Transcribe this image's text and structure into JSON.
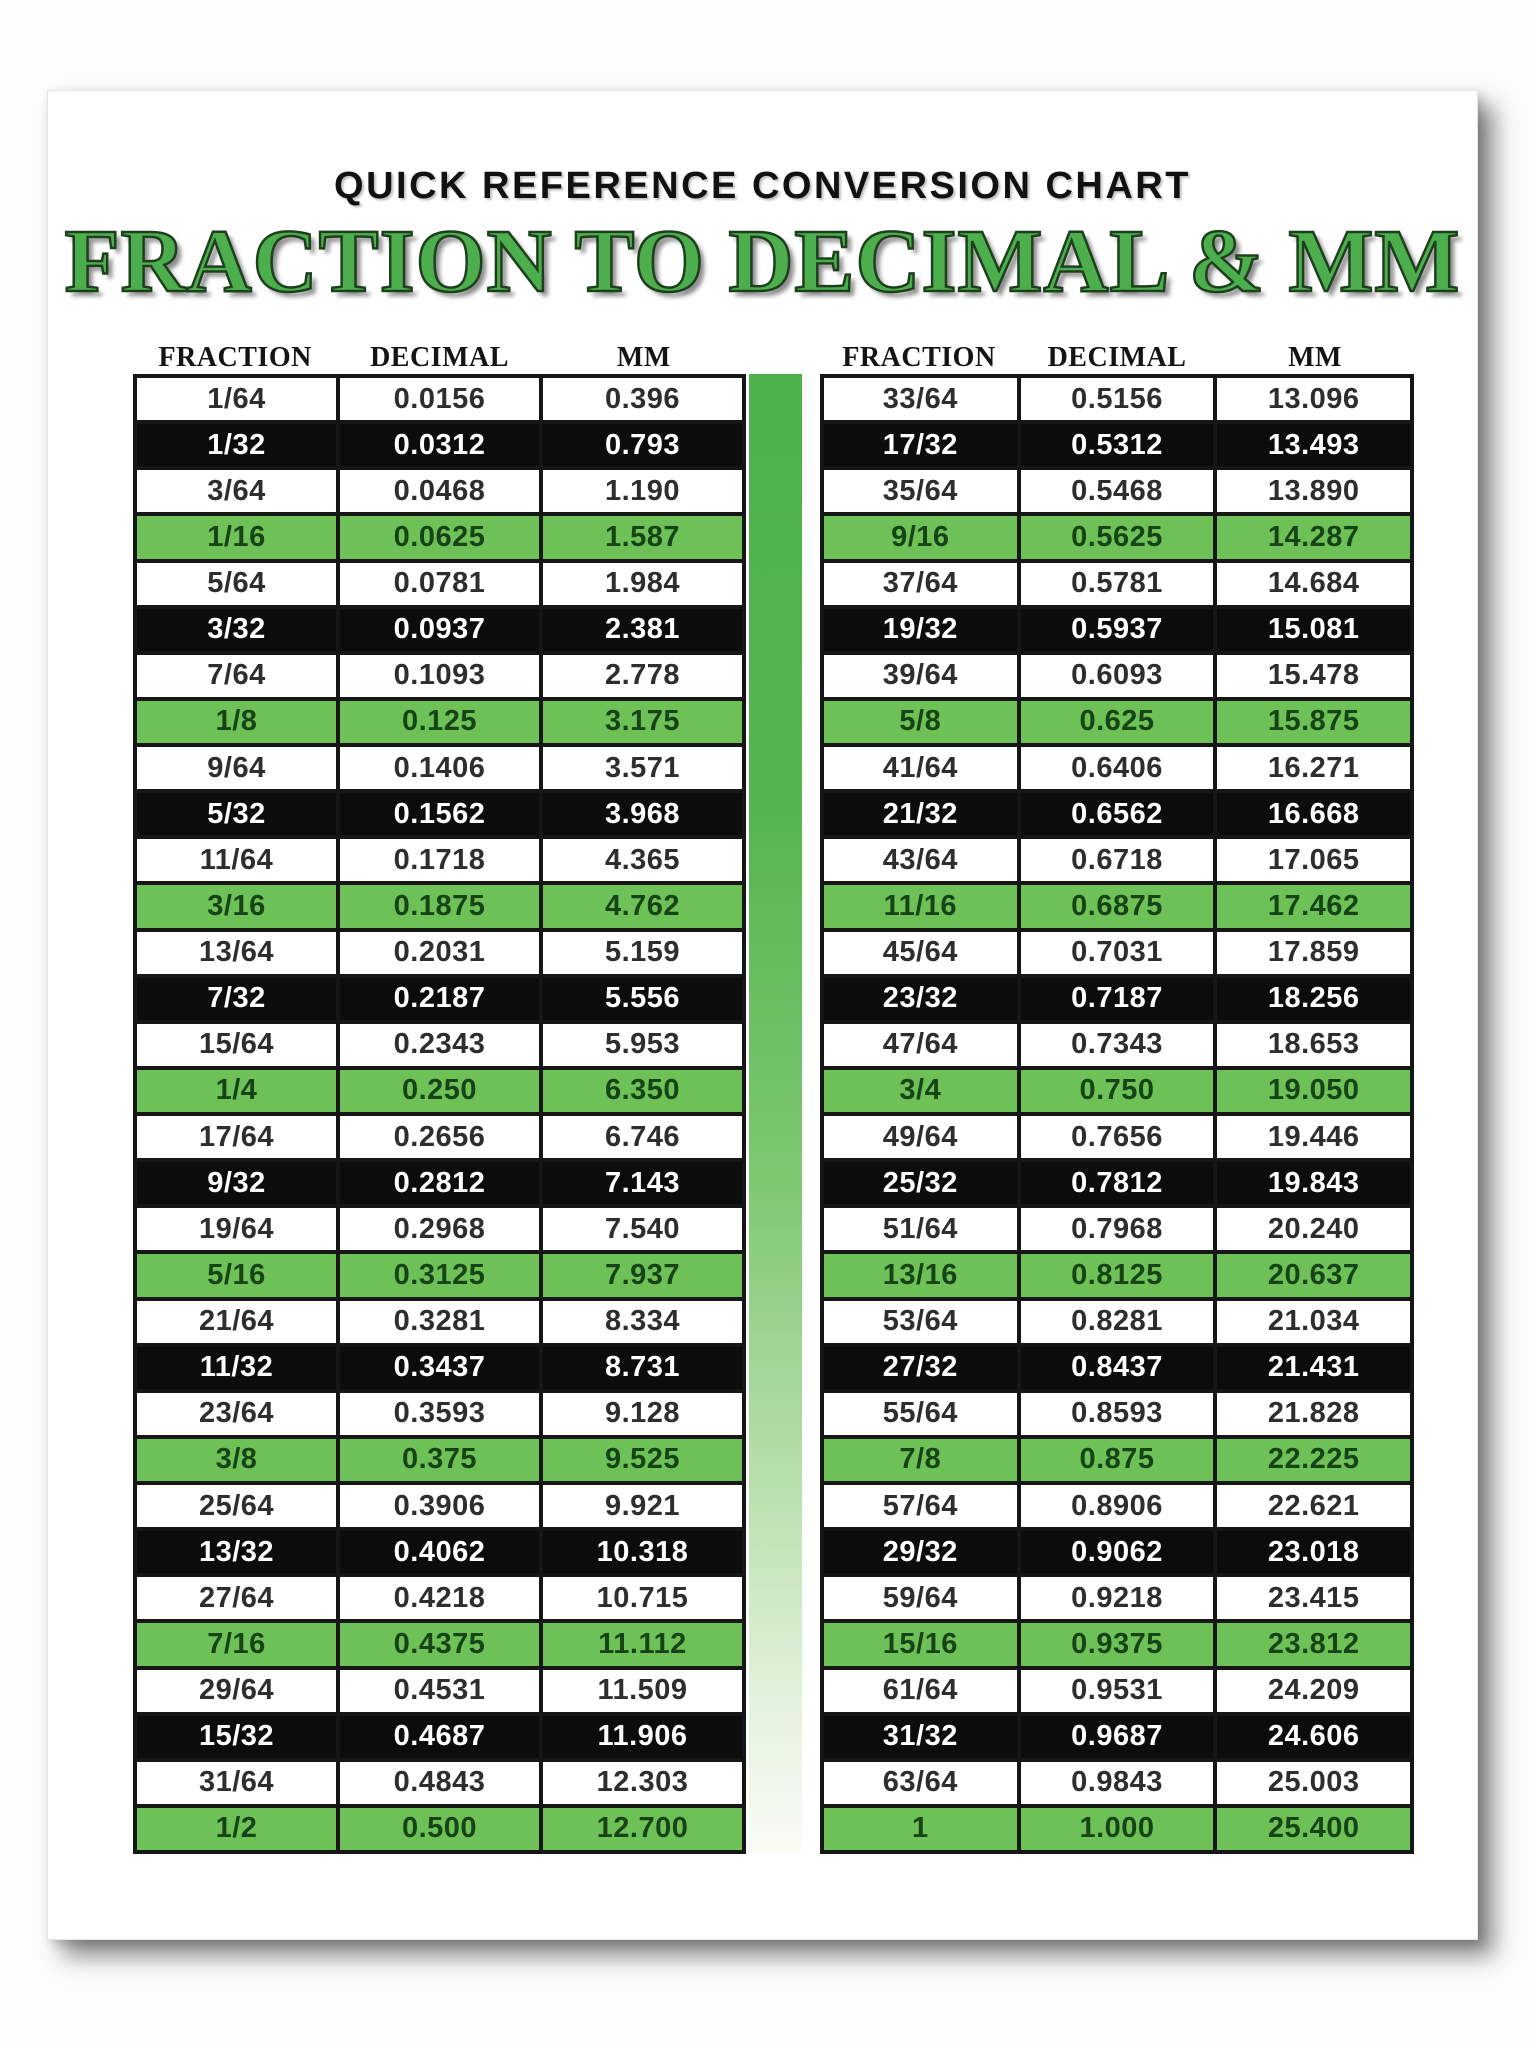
{
  "page": {
    "kicker": "QUICK REFERENCE CONVERSION CHART",
    "title": "FRACTION TO DECIMAL & MM"
  },
  "columns": [
    "FRACTION",
    "DECIMAL",
    "MM"
  ],
  "left_rows": [
    [
      "1/64",
      "0.0156",
      "0.396"
    ],
    [
      "1/32",
      "0.0312",
      "0.793"
    ],
    [
      "3/64",
      "0.0468",
      "1.190"
    ],
    [
      "1/16",
      "0.0625",
      "1.587"
    ],
    [
      "5/64",
      "0.0781",
      "1.984"
    ],
    [
      "3/32",
      "0.0937",
      "2.381"
    ],
    [
      "7/64",
      "0.1093",
      "2.778"
    ],
    [
      "1/8",
      "0.125",
      "3.175"
    ],
    [
      "9/64",
      "0.1406",
      "3.571"
    ],
    [
      "5/32",
      "0.1562",
      "3.968"
    ],
    [
      "11/64",
      "0.1718",
      "4.365"
    ],
    [
      "3/16",
      "0.1875",
      "4.762"
    ],
    [
      "13/64",
      "0.2031",
      "5.159"
    ],
    [
      "7/32",
      "0.2187",
      "5.556"
    ],
    [
      "15/64",
      "0.2343",
      "5.953"
    ],
    [
      "1/4",
      "0.250",
      "6.350"
    ],
    [
      "17/64",
      "0.2656",
      "6.746"
    ],
    [
      "9/32",
      "0.2812",
      "7.143"
    ],
    [
      "19/64",
      "0.2968",
      "7.540"
    ],
    [
      "5/16",
      "0.3125",
      "7.937"
    ],
    [
      "21/64",
      "0.3281",
      "8.334"
    ],
    [
      "11/32",
      "0.3437",
      "8.731"
    ],
    [
      "23/64",
      "0.3593",
      "9.128"
    ],
    [
      "3/8",
      "0.375",
      "9.525"
    ],
    [
      "25/64",
      "0.3906",
      "9.921"
    ],
    [
      "13/32",
      "0.4062",
      "10.318"
    ],
    [
      "27/64",
      "0.4218",
      "10.715"
    ],
    [
      "7/16",
      "0.4375",
      "11.112"
    ],
    [
      "29/64",
      "0.4531",
      "11.509"
    ],
    [
      "15/32",
      "0.4687",
      "11.906"
    ],
    [
      "31/64",
      "0.4843",
      "12.303"
    ],
    [
      "1/2",
      "0.500",
      "12.700"
    ]
  ],
  "right_rows": [
    [
      "33/64",
      "0.5156",
      "13.096"
    ],
    [
      "17/32",
      "0.5312",
      "13.493"
    ],
    [
      "35/64",
      "0.5468",
      "13.890"
    ],
    [
      "9/16",
      "0.5625",
      "14.287"
    ],
    [
      "37/64",
      "0.5781",
      "14.684"
    ],
    [
      "19/32",
      "0.5937",
      "15.081"
    ],
    [
      "39/64",
      "0.6093",
      "15.478"
    ],
    [
      "5/8",
      "0.625",
      "15.875"
    ],
    [
      "41/64",
      "0.6406",
      "16.271"
    ],
    [
      "21/32",
      "0.6562",
      "16.668"
    ],
    [
      "43/64",
      "0.6718",
      "17.065"
    ],
    [
      "11/16",
      "0.6875",
      "17.462"
    ],
    [
      "45/64",
      "0.7031",
      "17.859"
    ],
    [
      "23/32",
      "0.7187",
      "18.256"
    ],
    [
      "47/64",
      "0.7343",
      "18.653"
    ],
    [
      "3/4",
      "0.750",
      "19.050"
    ],
    [
      "49/64",
      "0.7656",
      "19.446"
    ],
    [
      "25/32",
      "0.7812",
      "19.843"
    ],
    [
      "51/64",
      "0.7968",
      "20.240"
    ],
    [
      "13/16",
      "0.8125",
      "20.637"
    ],
    [
      "53/64",
      "0.8281",
      "21.034"
    ],
    [
      "27/32",
      "0.8437",
      "21.431"
    ],
    [
      "55/64",
      "0.8593",
      "21.828"
    ],
    [
      "7/8",
      "0.875",
      "22.225"
    ],
    [
      "57/64",
      "0.8906",
      "22.621"
    ],
    [
      "29/32",
      "0.9062",
      "23.018"
    ],
    [
      "59/64",
      "0.9218",
      "23.415"
    ],
    [
      "15/16",
      "0.9375",
      "23.812"
    ],
    [
      "61/64",
      "0.9531",
      "24.209"
    ],
    [
      "31/32",
      "0.9687",
      "24.606"
    ],
    [
      "63/64",
      "0.9843",
      "25.003"
    ],
    [
      "1",
      "1.000",
      "25.400"
    ]
  ],
  "row_style_pattern": [
    "white",
    "black",
    "white",
    "green"
  ],
  "colors": {
    "title_green": "#4cae4c",
    "row_green": "#6dc156",
    "row_black": "#0c0c0c",
    "bar_gradient_top": "#4db24b",
    "bar_gradient_bottom": "#f8fcf6"
  }
}
